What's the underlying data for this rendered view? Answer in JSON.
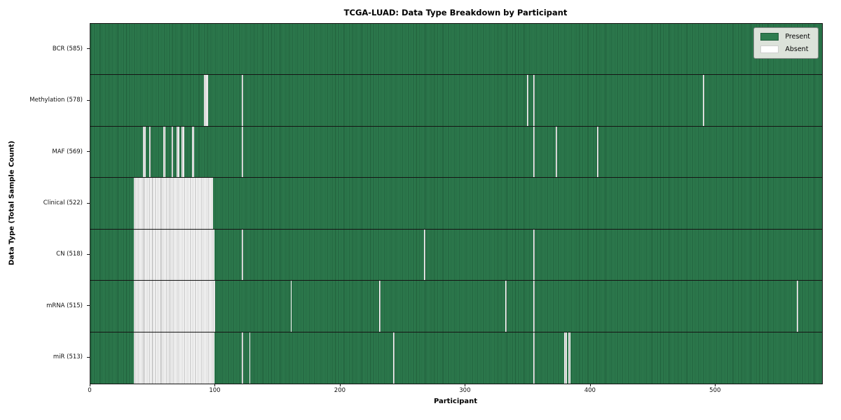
{
  "chart_data": {
    "type": "heatmap",
    "title": "TCGA-LUAD: Data Type Breakdown by Participant",
    "xlabel": "Participant",
    "ylabel": "Data Type (Total Sample Count)",
    "total_participants": 585,
    "x_min": 0,
    "x_max": 585,
    "x_ticks": [
      0,
      100,
      200,
      300,
      400,
      500
    ],
    "grid": false,
    "colors": {
      "present": "#2e7d4f",
      "present_edge": "#1f5c39",
      "absent": "#ffffff",
      "absent_edge": "#ababab",
      "row_divider": "#141414",
      "legend_bg": "#e9ebe5"
    },
    "legend": {
      "position": "upper right",
      "entries": [
        {
          "label": "Present",
          "color": "#2e7d4f",
          "edge": "#1f5c39"
        },
        {
          "label": "Absent",
          "color": "#ffffff",
          "edge": "#cfcfcf"
        }
      ]
    },
    "rows": [
      {
        "data_type": "BCR",
        "label": "BCR (585)",
        "present_count": 585,
        "absent_count": 0,
        "absent_ranges": []
      },
      {
        "data_type": "Methylation",
        "label": "Methylation (578)",
        "present_count": 578,
        "absent_count": 7,
        "absent_ranges": [
          [
            91,
            93
          ],
          [
            121,
            121
          ],
          [
            349,
            349
          ],
          [
            354,
            354
          ],
          [
            490,
            490
          ]
        ]
      },
      {
        "data_type": "MAF",
        "label": "MAF (569)",
        "present_count": 569,
        "absent_count": 16,
        "absent_ranges": [
          [
            42,
            43
          ],
          [
            47,
            47
          ],
          [
            58,
            59
          ],
          [
            65,
            65
          ],
          [
            69,
            70
          ],
          [
            73,
            74
          ],
          [
            81,
            82
          ],
          [
            121,
            121
          ],
          [
            354,
            354
          ],
          [
            372,
            372
          ],
          [
            405,
            405
          ]
        ]
      },
      {
        "data_type": "Clinical",
        "label": "Clinical (522)",
        "present_count": 522,
        "absent_count": 63,
        "absent_ranges": [
          [
            35,
            97
          ]
        ]
      },
      {
        "data_type": "CN",
        "label": "CN (518)",
        "present_count": 518,
        "absent_count": 67,
        "absent_ranges": [
          [
            35,
            98
          ],
          [
            121,
            121
          ],
          [
            267,
            267
          ],
          [
            354,
            354
          ]
        ]
      },
      {
        "data_type": "mRNA",
        "label": "mRNA (515)",
        "present_count": 515,
        "absent_count": 70,
        "absent_ranges": [
          [
            35,
            99
          ],
          [
            160,
            160
          ],
          [
            231,
            231
          ],
          [
            332,
            332
          ],
          [
            354,
            354
          ],
          [
            565,
            565
          ]
        ]
      },
      {
        "data_type": "miR",
        "label": "miR (513)",
        "present_count": 513,
        "absent_count": 72,
        "absent_ranges": [
          [
            35,
            98
          ],
          [
            121,
            121
          ],
          [
            127,
            127
          ],
          [
            242,
            242
          ],
          [
            354,
            354
          ],
          [
            379,
            380
          ],
          [
            382,
            383
          ]
        ]
      }
    ]
  }
}
